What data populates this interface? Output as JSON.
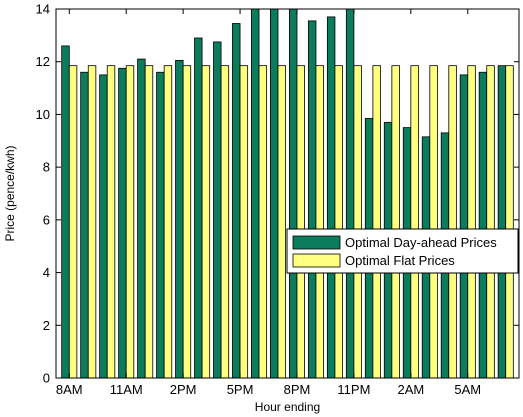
{
  "chart_data": {
    "type": "bar",
    "xlabel": "Hour ending",
    "ylabel": "Price (pence/kwh)",
    "ylim": [
      0,
      14
    ],
    "yticks": [
      0,
      2,
      4,
      6,
      8,
      10,
      12,
      14
    ],
    "xtick_labels": [
      "8AM",
      "11AM",
      "2PM",
      "5PM",
      "8PM",
      "11PM",
      "2AM",
      "5AM"
    ],
    "xtick_positions": [
      1,
      4,
      7,
      10,
      13,
      16,
      19,
      22
    ],
    "categories": [
      1,
      2,
      3,
      4,
      5,
      6,
      7,
      8,
      9,
      10,
      11,
      12,
      13,
      14,
      15,
      16,
      17,
      18,
      19,
      20,
      21,
      22,
      23,
      24
    ],
    "legend_position": "middle-right",
    "grid": false,
    "series": [
      {
        "name": "Optimal Day-ahead Prices",
        "color": "#0b7c5c",
        "values": [
          12.6,
          11.6,
          11.5,
          11.75,
          12.1,
          11.6,
          12.05,
          12.9,
          12.75,
          13.45,
          14.0,
          14.0,
          14.0,
          13.55,
          13.7,
          14.0,
          9.85,
          9.7,
          9.5,
          9.15,
          9.3,
          11.5,
          11.6,
          11.85
        ]
      },
      {
        "name": "Optimal Flat Prices",
        "color": "#ffff80",
        "values": [
          11.85,
          11.85,
          11.85,
          11.85,
          11.85,
          11.85,
          11.85,
          11.85,
          11.85,
          11.85,
          11.85,
          11.85,
          11.85,
          11.85,
          11.85,
          11.85,
          11.85,
          11.85,
          11.85,
          11.85,
          11.85,
          11.85,
          11.85,
          11.85
        ]
      }
    ]
  }
}
